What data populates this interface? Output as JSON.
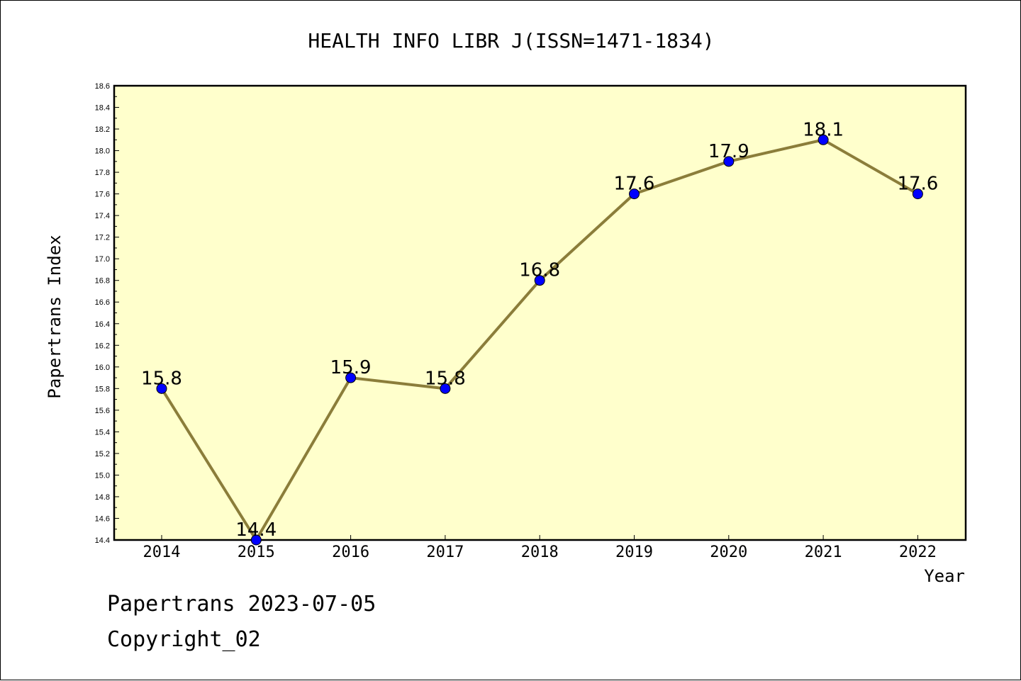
{
  "chart_data": {
    "type": "line",
    "title": "HEALTH INFO LIBR J(ISSN=1471-1834)",
    "xlabel": "Year",
    "ylabel": "Papertrans Index",
    "categories": [
      "2014",
      "2015",
      "2016",
      "2017",
      "2018",
      "2019",
      "2020",
      "2021",
      "2022"
    ],
    "values": [
      15.8,
      14.4,
      15.9,
      15.8,
      16.8,
      17.6,
      17.9,
      18.1,
      17.6
    ],
    "data_labels": [
      "15.8",
      "14.4",
      "15.9",
      "15.8",
      "16.8",
      "17.6",
      "17.9",
      "18.1",
      "17.6"
    ],
    "ylim": [
      14.4,
      18.6
    ],
    "yticks": [
      "14.4",
      "14.6",
      "14.8",
      "15.0",
      "15.2",
      "15.4",
      "15.6",
      "15.8",
      "16.0",
      "16.2",
      "16.4",
      "16.6",
      "16.8",
      "17.0",
      "17.2",
      "17.4",
      "17.6",
      "17.8",
      "18.0",
      "18.2",
      "18.4",
      "18.6"
    ],
    "grid": false,
    "colors": {
      "plot_background": "#ffffcc",
      "line": "#8b7d3a",
      "marker": "#0000ff"
    }
  },
  "footer": {
    "date_text": "Papertrans 2023-07-05",
    "copyright_text": "Copyright_02"
  }
}
